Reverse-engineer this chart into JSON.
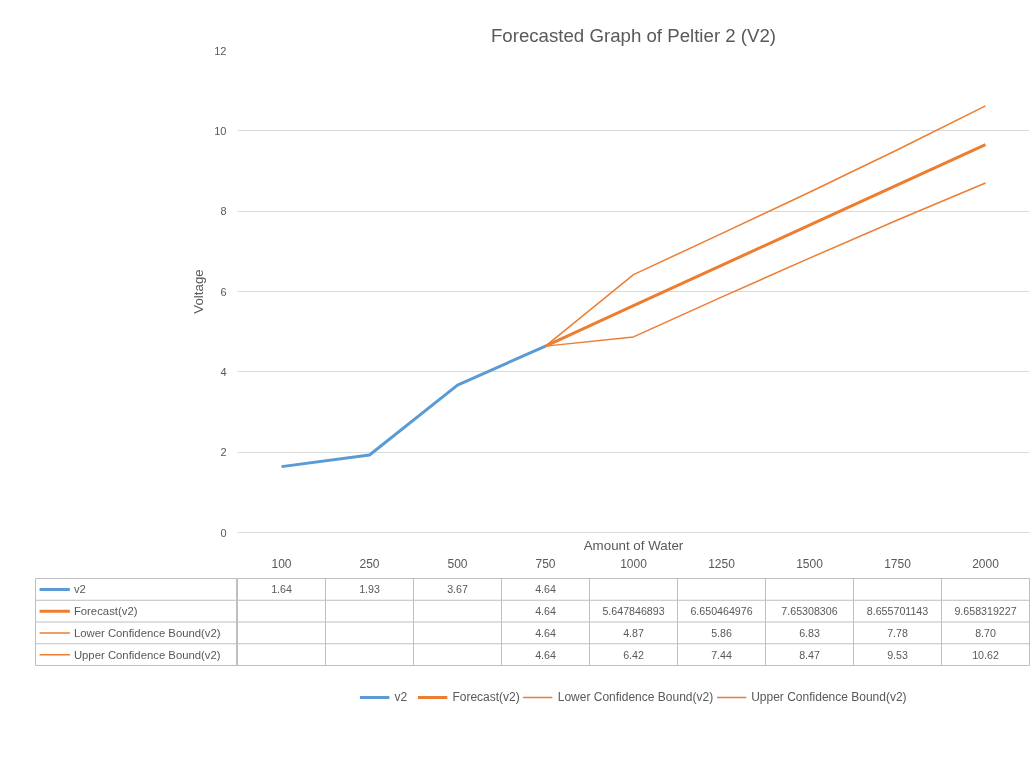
{
  "chart_data": {
    "type": "line",
    "title": "Forecasted Graph of Peltier 2 (V2)",
    "xlabel": "Amount of Water",
    "ylabel": "Voltage",
    "categories": [
      "100",
      "250",
      "500",
      "750",
      "1000",
      "1250",
      "1500",
      "1750",
      "2000"
    ],
    "ylim": [
      0,
      12
    ],
    "yticks": [
      0,
      2,
      4,
      6,
      8,
      10,
      12
    ],
    "grid": "y",
    "legend": "bottom",
    "line_style": "solid",
    "marker": "none",
    "series": [
      {
        "name": "v2",
        "color": "#5b9bd5",
        "values": [
          1.64,
          1.93,
          3.67,
          4.64,
          null,
          null,
          null,
          null,
          null
        ],
        "value_labels": [
          "1.64",
          "1.93",
          "3.67",
          "4.64",
          null,
          null,
          null,
          null,
          null
        ]
      },
      {
        "name": "Forecast(v2)",
        "color": "#ed7d31",
        "values": [
          null,
          null,
          null,
          4.64,
          5.647846893,
          6.650464976,
          7.65308306,
          8.655701143,
          9.658319227
        ],
        "value_labels": [
          null,
          null,
          null,
          "4.64",
          "5.647846893",
          "6.650464976",
          "7.65308306",
          "8.655701143",
          "9.658319227"
        ]
      },
      {
        "name": "Lower Confidence Bound(v2)",
        "color": "#ed7d31",
        "values": [
          null,
          null,
          null,
          4.64,
          4.87,
          5.86,
          6.83,
          7.78,
          8.7
        ],
        "value_labels": [
          null,
          null,
          null,
          "4.64",
          "4.87",
          "5.86",
          "6.83",
          "7.78",
          "8.70"
        ]
      },
      {
        "name": "Upper Confidence Bound(v2)",
        "color": "#ed7d31",
        "values": [
          null,
          null,
          null,
          4.64,
          6.42,
          7.44,
          8.47,
          9.53,
          10.62
        ],
        "value_labels": [
          null,
          null,
          null,
          "4.64",
          "6.42",
          "7.44",
          "8.47",
          "9.53",
          "10.62"
        ]
      }
    ]
  }
}
